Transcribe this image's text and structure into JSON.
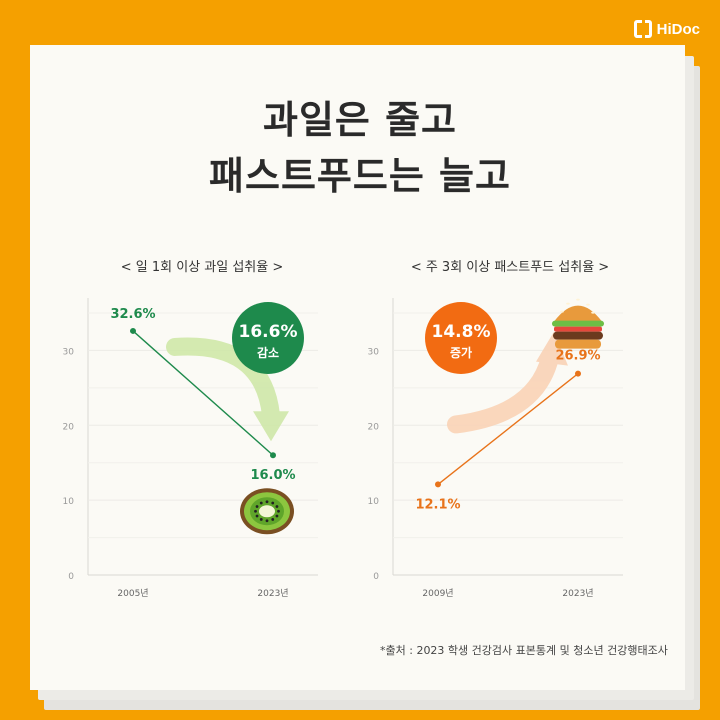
{
  "brand": {
    "name": "HiDoc",
    "mark": "[]"
  },
  "title": {
    "line1": "과일은 줄고",
    "line2": "패스트푸드는 늘고"
  },
  "chart_data": [
    {
      "type": "line",
      "title": "< 일 1회 이상 과일 섭취율 >",
      "x": [
        "2005년",
        "2023년"
      ],
      "values": [
        32.6,
        16.0
      ],
      "point_labels": [
        "32.6%",
        "16.0%"
      ],
      "yticks": [
        0,
        10,
        20,
        30
      ],
      "ylim": [
        0,
        37
      ],
      "badge": {
        "value": "16.6%",
        "label": "감소"
      },
      "color": "#1E8A4C",
      "badge_color": "#1E8A4C",
      "arrow_color": "#CFE8A9",
      "icon": "kiwi-icon"
    },
    {
      "type": "line",
      "title": "< 주 3회 이상 패스트푸드 섭취율 >",
      "x": [
        "2009년",
        "2023년"
      ],
      "values": [
        12.1,
        26.9
      ],
      "point_labels": [
        "12.1%",
        "26.9%"
      ],
      "yticks": [
        0,
        10,
        20,
        30
      ],
      "ylim": [
        0,
        37
      ],
      "badge": {
        "value": "14.8%",
        "label": "증가"
      },
      "color": "#E8731A",
      "badge_color": "#F26B12",
      "arrow_color": "#F9D3B6",
      "icon": "burger-icon"
    }
  ],
  "source_note": "*출처 : 2023 학생 건강검사 표본통계 및 청소년 건강행태조사"
}
